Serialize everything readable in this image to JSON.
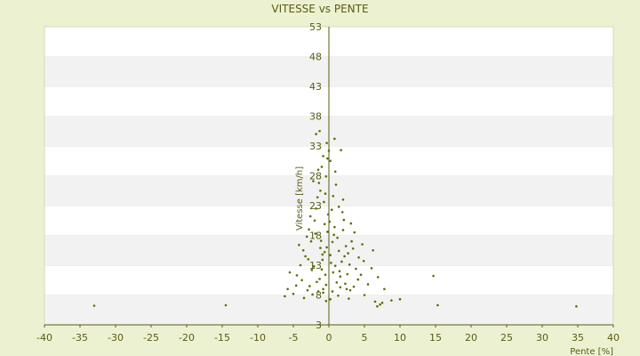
{
  "colors": {
    "background": "#ecf2d1",
    "band_light": "#ffffff",
    "band_dark": "#f2f2f2",
    "axis": "#5a5a14",
    "point": "#5a6e00",
    "text": "#5a5a14"
  },
  "chart_data": {
    "type": "scatter",
    "title": "VITESSE vs PENTE",
    "xlabel": "Pente [%]",
    "ylabel": "Vitesse [km/h]",
    "xlim": [
      -40,
      40
    ],
    "ylim": [
      3,
      53
    ],
    "x_ticks": [
      -40,
      -35,
      -30,
      -25,
      -20,
      -15,
      -10,
      -5,
      0,
      5,
      10,
      15,
      20,
      25,
      30,
      35,
      40
    ],
    "y_ticks": [
      3,
      8,
      13,
      18,
      23,
      28,
      33,
      38,
      43,
      48,
      53
    ],
    "x_tick_labels": [
      "-40",
      "-35",
      "-30",
      "-25",
      "-20",
      "-15",
      "-10",
      "-5",
      "0",
      "5",
      "10",
      "15",
      "20",
      "25",
      "30",
      "35",
      "40"
    ],
    "y_tick_labels": [
      "3",
      "8",
      "13",
      "18",
      "23",
      "28",
      "33",
      "38",
      "43",
      "48",
      "53"
    ],
    "grid": "horizontal alternating bands",
    "axes_cross_at_origin": true,
    "points": [
      [
        -33.0,
        6.2
      ],
      [
        -14.5,
        6.3
      ],
      [
        34.8,
        6.1
      ],
      [
        15.3,
        6.3
      ],
      [
        14.7,
        11.2
      ],
      [
        7.5,
        6.7
      ],
      [
        7.2,
        6.4
      ],
      [
        6.8,
        6.1
      ],
      [
        6.5,
        6.9
      ],
      [
        8.8,
        7.1
      ],
      [
        10.0,
        7.3
      ],
      [
        7.8,
        9.0
      ],
      [
        6.9,
        11.0
      ],
      [
        6.0,
        12.5
      ],
      [
        6.2,
        15.5
      ],
      [
        5.5,
        9.8
      ],
      [
        5.0,
        8.0
      ],
      [
        4.5,
        11.4
      ],
      [
        4.2,
        14.3
      ],
      [
        4.7,
        16.5
      ],
      [
        3.0,
        8.8
      ],
      [
        3.5,
        9.4
      ],
      [
        2.5,
        9.0
      ],
      [
        1.6,
        9.3
      ],
      [
        0.2,
        7.3
      ],
      [
        -0.4,
        7.0
      ],
      [
        -0.8,
        9.0
      ],
      [
        -1.5,
        8.6
      ],
      [
        -2.3,
        8.1
      ],
      [
        -3.0,
        8.8
      ],
      [
        -5.0,
        8.2
      ],
      [
        -5.8,
        9.0
      ],
      [
        -6.2,
        7.8
      ],
      [
        -4.5,
        11.3
      ],
      [
        -5.5,
        11.8
      ],
      [
        -4.0,
        13.0
      ],
      [
        -3.3,
        14.5
      ],
      [
        -2.5,
        17.0
      ],
      [
        -4.2,
        16.4
      ],
      [
        -1.8,
        22.5
      ],
      [
        -1.2,
        25.5
      ],
      [
        -1.0,
        29.5
      ],
      [
        -0.8,
        31.3
      ],
      [
        -0.3,
        33.5
      ],
      [
        -1.8,
        35.0
      ],
      [
        -1.3,
        35.5
      ],
      [
        0.8,
        34.2
      ],
      [
        1.7,
        32.3
      ],
      [
        0.2,
        30.5
      ],
      [
        1.0,
        26.5
      ],
      [
        2.0,
        24.0
      ],
      [
        2.1,
        20.6
      ],
      [
        3.1,
        20.0
      ],
      [
        3.6,
        18.5
      ],
      [
        3.2,
        17.0
      ],
      [
        2.7,
        15.0
      ],
      [
        1.8,
        13.6
      ],
      [
        1.5,
        12.0
      ],
      [
        2.6,
        11.5
      ],
      [
        2.2,
        14.5
      ],
      [
        -2.0,
        20.5
      ],
      [
        -2.8,
        19.0
      ],
      [
        -3.1,
        17.8
      ],
      [
        -3.6,
        15.5
      ],
      [
        -2.1,
        12.8
      ],
      [
        -1.7,
        10.2
      ],
      [
        -0.5,
        11.4
      ],
      [
        0.3,
        13.4
      ],
      [
        -0.6,
        15.2
      ],
      [
        0.5,
        16.9
      ],
      [
        -0.2,
        18.6
      ],
      [
        0.8,
        19.4
      ],
      [
        1.2,
        17.6
      ],
      [
        -1.1,
        17.1
      ],
      [
        -0.9,
        13.9
      ],
      [
        0.6,
        11.8
      ],
      [
        1.1,
        10.1
      ],
      [
        -1.3,
        10.7
      ],
      [
        -2.4,
        12.2
      ],
      [
        -2.9,
        14.0
      ],
      [
        1.4,
        15.4
      ],
      [
        2.4,
        16.2
      ],
      [
        2.9,
        13.1
      ],
      [
        3.8,
        12.4
      ],
      [
        4.1,
        10.6
      ],
      [
        -0.1,
        21.5
      ],
      [
        0.4,
        22.3
      ],
      [
        -0.7,
        23.6
      ],
      [
        -1.4,
        26.8
      ],
      [
        -0.4,
        27.9
      ],
      [
        0.9,
        28.7
      ],
      [
        -0.2,
        30.9
      ],
      [
        1.4,
        22.8
      ],
      [
        1.9,
        21.9
      ],
      [
        -1.6,
        24.4
      ],
      [
        -2.2,
        27.1
      ],
      [
        -0.6,
        19.9
      ],
      [
        0.1,
        20.3
      ],
      [
        0.7,
        18.1
      ],
      [
        -1.9,
        18.3
      ],
      [
        -0.3,
        16.0
      ],
      [
        0.2,
        14.7
      ],
      [
        -1.0,
        12.3
      ],
      [
        -0.8,
        8.4
      ],
      [
        0.5,
        8.6
      ],
      [
        1.3,
        7.9
      ],
      [
        2.8,
        7.4
      ],
      [
        -3.5,
        7.5
      ],
      [
        -4.6,
        9.6
      ],
      [
        -3.8,
        10.5
      ],
      [
        4.9,
        13.7
      ],
      [
        3.4,
        15.8
      ],
      [
        2.0,
        18.9
      ],
      [
        -2.6,
        21.2
      ],
      [
        -0.5,
        25.0
      ],
      [
        0.6,
        24.6
      ],
      [
        -1.5,
        29.0
      ],
      [
        0.0,
        32.2
      ],
      [
        -0.9,
        14.8
      ],
      [
        0.9,
        12.9
      ],
      [
        1.6,
        11.1
      ],
      [
        -0.4,
        9.7
      ],
      [
        -1.2,
        15.9
      ],
      [
        2.3,
        9.9
      ],
      [
        -2.7,
        9.5
      ]
    ]
  }
}
